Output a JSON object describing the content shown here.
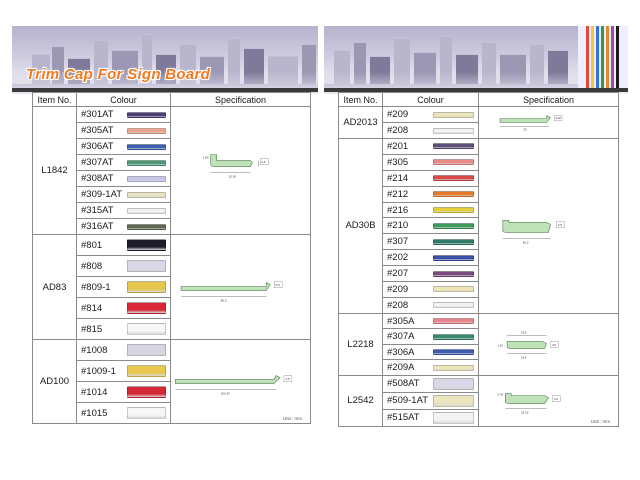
{
  "colors": {
    "banner_title": "#f07a20",
    "border": "#8a8a8a"
  },
  "left": {
    "title": "Trim Cap For Sign Board",
    "headers": {
      "item": "Item No.",
      "colour": "Colour",
      "spec": "Specification"
    },
    "unit": "Unit : mm",
    "groups": [
      {
        "item": "L1842",
        "rows": [
          {
            "code": "#301AT",
            "color": "#4b3f73"
          },
          {
            "code": "#305AT",
            "color": "#f0a48a"
          },
          {
            "code": "#306AT",
            "color": "#3f5fb0"
          },
          {
            "code": "#307AT",
            "color": "#4d9a78"
          },
          {
            "code": "#308AT",
            "color": "#c8c6e8"
          },
          {
            "code": "#309-1AT",
            "color": "#e7e3c4"
          },
          {
            "code": "#315AT",
            "color": "#f1f1f1"
          },
          {
            "code": "#316AT",
            "color": "#5d6a4d"
          }
        ]
      },
      {
        "item": "AD83",
        "rows": [
          {
            "code": "#801",
            "color": "#1f1d2a"
          },
          {
            "code": "#808",
            "color": "#d8d8e6"
          },
          {
            "code": "#809-1",
            "color": "#e6c64a"
          },
          {
            "code": "#814",
            "color": "#d8283a"
          },
          {
            "code": "#815",
            "color": "#f7f7f7"
          }
        ]
      },
      {
        "item": "AD100",
        "rows": [
          {
            "code": "#1008",
            "color": "#d7d6e4"
          },
          {
            "code": "#1009-1",
            "color": "#e9c84e"
          },
          {
            "code": "#1014",
            "color": "#d52a35"
          },
          {
            "code": "#1015",
            "color": "#f7f7f7"
          }
        ]
      }
    ],
    "dims": {
      "l1842": {
        "w": "20.30",
        "h1": "1.80",
        "h2": "4.5"
      },
      "ad83": {
        "w": "80.3",
        "h": "4.5"
      },
      "ad100": {
        "w": "100.30",
        "h": "4.5"
      }
    }
  },
  "right": {
    "headers": {
      "item": "Item No.",
      "colour": "Colour",
      "spec": "Specification"
    },
    "unit": "Unit : mm",
    "groups": [
      {
        "item": "AD2013",
        "rows": [
          {
            "code": "#209",
            "color": "#ece6b8"
          },
          {
            "code": "#208",
            "color": "#f2f2f2"
          }
        ]
      },
      {
        "item": "AD30B",
        "rows": [
          {
            "code": "#201",
            "color": "#5c4f78"
          },
          {
            "code": "#305",
            "color": "#e88a86"
          },
          {
            "code": "#214",
            "color": "#d84a4a"
          },
          {
            "code": "#212",
            "color": "#e67a2a"
          },
          {
            "code": "#216",
            "color": "#e3cf3a"
          },
          {
            "code": "#210",
            "color": "#3e9a5c"
          },
          {
            "code": "#307",
            "color": "#2f7a66"
          },
          {
            "code": "#202",
            "color": "#3a4fa8"
          },
          {
            "code": "#207",
            "color": "#7a4a7e"
          },
          {
            "code": "#209",
            "color": "#eee6b4"
          },
          {
            "code": "#208",
            "color": "#f3f3f3"
          }
        ]
      },
      {
        "item": "L2218",
        "rows": [
          {
            "code": "#305A",
            "color": "#e8848a"
          },
          {
            "code": "#307A",
            "color": "#3a8a6c"
          },
          {
            "code": "#306A",
            "color": "#3c5bb0"
          },
          {
            "code": "#209A",
            "color": "#ede6b6"
          }
        ]
      },
      {
        "item": "L2542",
        "rows": [
          {
            "code": "#508AT",
            "color": "#d9d8e8"
          },
          {
            "code": "#509-1AT",
            "color": "#ebe6bf"
          },
          {
            "code": "#515AT",
            "color": "#f3f3f3"
          }
        ]
      }
    ],
    "dims": {
      "ad2013": {
        "w": "20",
        "h": "4.18"
      },
      "ad30b": {
        "w": "30.3",
        "h": "4.5"
      },
      "l2218": {
        "w1": "18.5",
        "w2": "18.5",
        "h1": "1.42",
        "h2": "4.5"
      },
      "l2542": {
        "w": "25.20",
        "h1": "2.42",
        "h2": "4.5"
      }
    }
  }
}
